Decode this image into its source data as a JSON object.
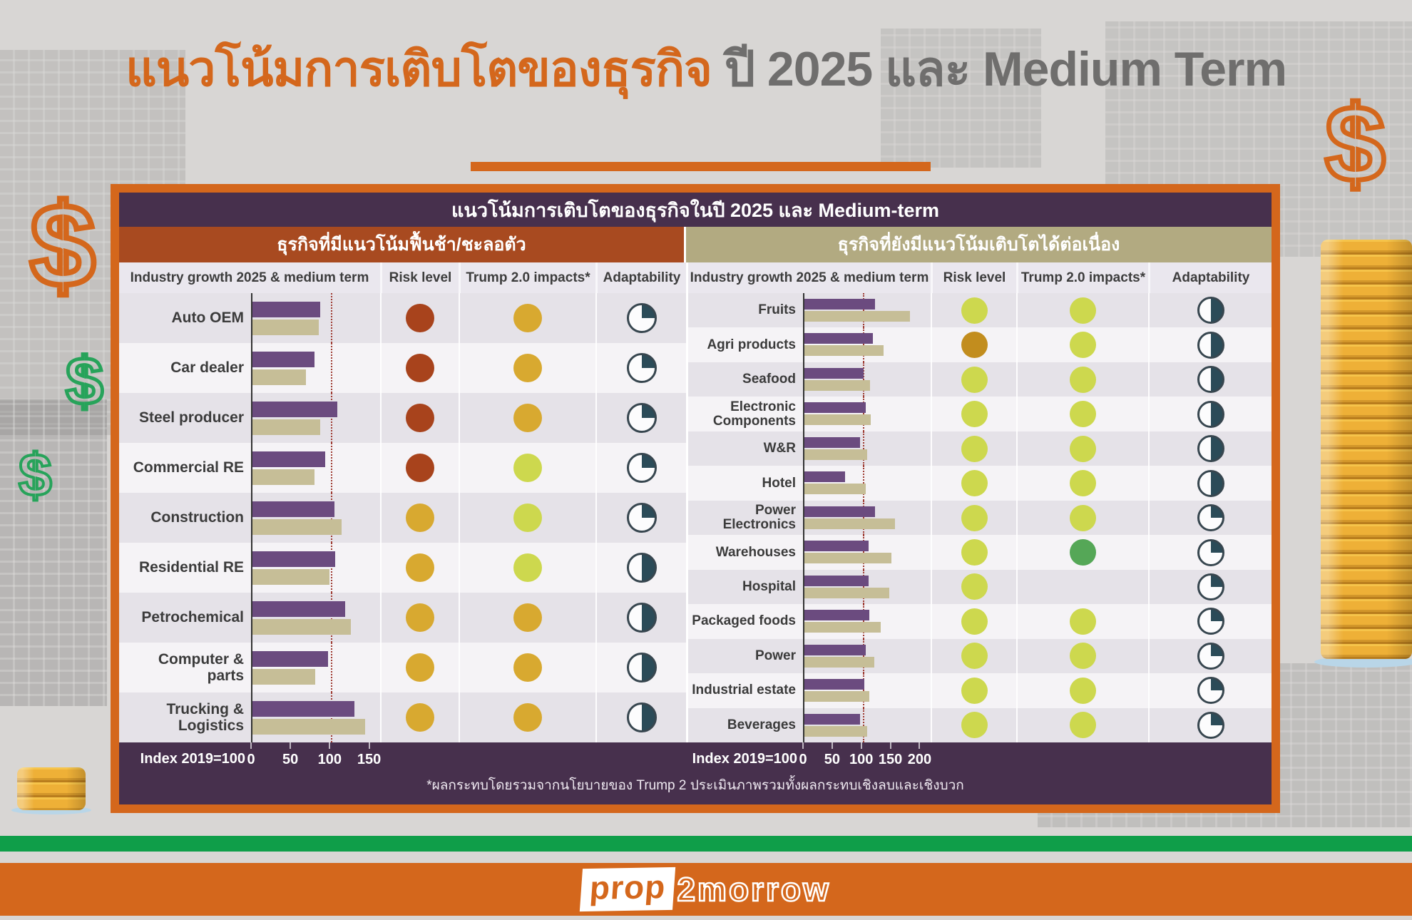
{
  "header": {
    "title_highlight": "แนวโน้มการเติบโตของธุรกิจ",
    "title_rest": " ปี 2025 และ Medium Term"
  },
  "icons": {
    "dollar": "$"
  },
  "branding": {
    "logo_prop": "prop",
    "logo_tomorrow": "2morrow"
  },
  "chart_data": {
    "type": "bar",
    "title": "แนวโน้มการเติบโตของธุรกิจในปี 2025 และ Medium-term",
    "index_label": "Index 2019=100",
    "footnote": "*ผลกระทบโดยรวมจากนโยบายของ Trump 2 ประเมินภาพรวมทั้งผลกระทบเชิงลบและเชิงบวก",
    "series_names": [
      "Industry growth 2025",
      "Medium term"
    ],
    "reference_line": 100,
    "legend_note": "bars indexed to 2019=100; dotted line = 100",
    "panels": [
      {
        "header": "ธุรกิจที่มีแนวโน้มฟื้นช้า/ชะลอตัว",
        "columns": [
          "Industry growth 2025 & medium term",
          "Risk level",
          "Trump 2.0 impacts*",
          "Adaptability"
        ],
        "axis_ticks": [
          0,
          50,
          100,
          150
        ],
        "axis_max": 164,
        "rows": [
          {
            "label": "Auto OEM",
            "g2025": 86,
            "gmed": 84,
            "risk": "dark-red",
            "trump": "gold",
            "adapt": 25
          },
          {
            "label": "Car dealer",
            "g2025": 79,
            "gmed": 68,
            "risk": "dark-red",
            "trump": "gold",
            "adapt": 25
          },
          {
            "label": "Steel producer",
            "g2025": 108,
            "gmed": 86,
            "risk": "dark-red",
            "trump": "gold",
            "adapt": 25
          },
          {
            "label": "Commercial RE",
            "g2025": 92,
            "gmed": 79,
            "risk": "dark-red",
            "trump": "yellow-green",
            "adapt": 25
          },
          {
            "label": "Construction",
            "g2025": 104,
            "gmed": 113,
            "risk": "gold",
            "trump": "yellow-green",
            "adapt": 25
          },
          {
            "label": "Residential RE",
            "g2025": 105,
            "gmed": 98,
            "risk": "gold",
            "trump": "yellow-green",
            "adapt": 50
          },
          {
            "label": "Petrochemical",
            "g2025": 118,
            "gmed": 125,
            "risk": "gold",
            "trump": "gold",
            "adapt": 50
          },
          {
            "label": "Computer & parts",
            "g2025": 96,
            "gmed": 80,
            "risk": "gold",
            "trump": "gold",
            "adapt": 50
          },
          {
            "label": "Trucking & Logistics",
            "g2025": 130,
            "gmed": 143,
            "risk": "gold",
            "trump": "gold",
            "adapt": 50
          }
        ]
      },
      {
        "header": "ธุรกิจที่ยังมีแนวโน้มเติบโตได้ต่อเนื่อง",
        "columns": [
          "Industry growth 2025 & medium term",
          "Risk level",
          "Trump 2.0 impacts*",
          "Adaptability"
        ],
        "axis_ticks": [
          0,
          50,
          100,
          150,
          200
        ],
        "axis_max": 219,
        "rows": [
          {
            "label": "Fruits",
            "g2025": 121,
            "gmed": 181,
            "risk": "yellow-green",
            "trump": "yellow-green",
            "adapt": 50
          },
          {
            "label": "Agri products",
            "g2025": 118,
            "gmed": 136,
            "risk": "amber",
            "trump": "yellow-green",
            "adapt": 50
          },
          {
            "label": "Seafood",
            "g2025": 101,
            "gmed": 112,
            "risk": "yellow-green",
            "trump": "yellow-green",
            "adapt": 50
          },
          {
            "label": "Electronic Components",
            "g2025": 105,
            "gmed": 114,
            "risk": "yellow-green",
            "trump": "yellow-green",
            "adapt": 50
          },
          {
            "label": "W&R",
            "g2025": 95,
            "gmed": 108,
            "risk": "yellow-green",
            "trump": "yellow-green",
            "adapt": 50
          },
          {
            "label": "Hotel",
            "g2025": 70,
            "gmed": 105,
            "risk": "yellow-green",
            "trump": "yellow-green",
            "adapt": 50
          },
          {
            "label": "Power Electronics",
            "g2025": 121,
            "gmed": 155,
            "risk": "yellow-green",
            "trump": "yellow-green",
            "adapt": 25
          },
          {
            "label": "Warehouses",
            "g2025": 110,
            "gmed": 149,
            "risk": "yellow-green",
            "trump": "green",
            "adapt": 25
          },
          {
            "label": "Hospital",
            "g2025": 110,
            "gmed": 146,
            "risk": "yellow-green",
            "trump": "none",
            "adapt": 25
          },
          {
            "label": "Packaged foods",
            "g2025": 111,
            "gmed": 131,
            "risk": "yellow-green",
            "trump": "yellow-green",
            "adapt": 25
          },
          {
            "label": "Power",
            "g2025": 105,
            "gmed": 120,
            "risk": "yellow-green",
            "trump": "yellow-green",
            "adapt": 25
          },
          {
            "label": "Industrial estate",
            "g2025": 103,
            "gmed": 111,
            "risk": "yellow-green",
            "trump": "yellow-green",
            "adapt": 25
          },
          {
            "label": "Beverages",
            "g2025": 95,
            "gmed": 108,
            "risk": "yellow-green",
            "trump": "yellow-green",
            "adapt": 25
          }
        ]
      }
    ],
    "colors": {
      "accent_orange": "#d4671c",
      "bar_2025": "#6b4b7f",
      "bar_medium": "#c6be97",
      "reference": "#9e3b32",
      "dark-red": "#a8431c",
      "gold": "#d8a930",
      "amber": "#c28d1e",
      "yellow-green": "#cdd84e",
      "green": "#55a757",
      "pie_fill": "#2b4b58",
      "green_stripe": "#0f9e49",
      "header_purple": "#47304d",
      "section_red": "#a84a20",
      "section_tan": "#b2aa81"
    }
  }
}
